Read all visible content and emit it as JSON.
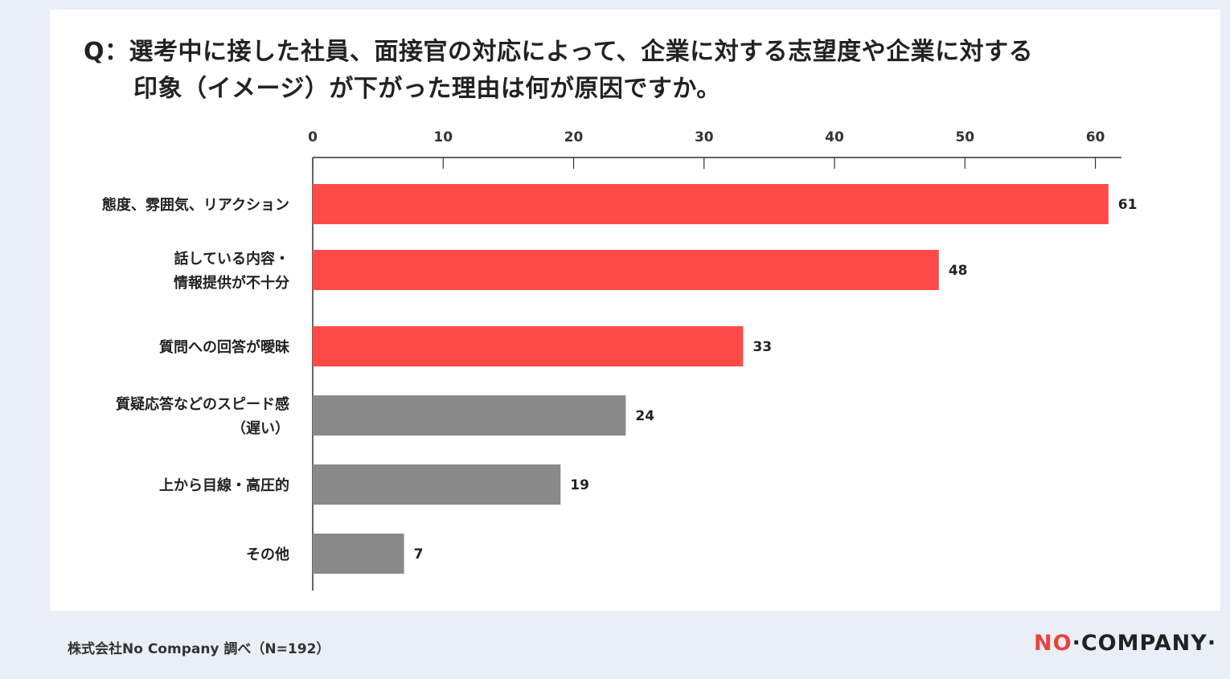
{
  "question": {
    "line1": "Q：選考中に接した社員、面接官の対応によって、企業に対する志望度や企業に対する",
    "line2": "印象（イメージ）が下がった理由は何が原因ですか。"
  },
  "footer": {
    "source": "株式会社No Company 調べ（N=192）"
  },
  "logo": {
    "part1": "NO",
    "part2": "COMPANY",
    "accent_color": "#e5443f"
  },
  "chart_data": {
    "type": "bar",
    "orientation": "horizontal",
    "categories": [
      [
        "態度、雰囲気、リアクション"
      ],
      [
        "話している内容・",
        "情報提供が不十分"
      ],
      [
        "質問への回答が曖昧"
      ],
      [
        "質疑応答などのスピード感",
        "（遅い）"
      ],
      [
        "上から目線・高圧的"
      ],
      [
        "その他"
      ]
    ],
    "values": [
      61,
      48,
      33,
      24,
      19,
      7
    ],
    "colors": [
      "#ff4b48",
      "#ff4b48",
      "#ff4b48",
      "#898989",
      "#898989",
      "#898989"
    ],
    "xlim": [
      0,
      62
    ],
    "ticks": [
      0,
      10,
      20,
      30,
      40,
      50,
      60
    ],
    "axis_position": "top",
    "grid": false,
    "legend": "none"
  }
}
